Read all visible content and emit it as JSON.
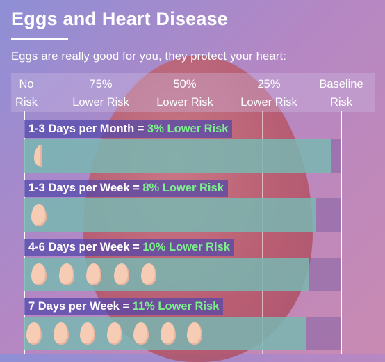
{
  "title": "Eggs and Heart Disease",
  "subtitle": "Eggs are really good for you, they protect your heart:",
  "chart_data": {
    "type": "bar",
    "orientation": "horizontal",
    "title": "Eggs and Heart Disease",
    "axis_labels": [
      {
        "line1": "No",
        "line2": "Risk",
        "risk_remaining_pct": 0
      },
      {
        "line1": "75%",
        "line2": "Lower Risk",
        "risk_remaining_pct": 25
      },
      {
        "line1": "50%",
        "line2": "Lower Risk",
        "risk_remaining_pct": 50
      },
      {
        "line1": "25%",
        "line2": "Lower Risk",
        "risk_remaining_pct": 75
      },
      {
        "line1": "Baseline",
        "line2": "Risk",
        "risk_remaining_pct": 100
      }
    ],
    "xlim": [
      0,
      100
    ],
    "rows": [
      {
        "label": "1-3 Days per Month = ",
        "risk_text": "3% Lower Risk",
        "lower_risk_pct": 3,
        "eggs": 0.5
      },
      {
        "label": "1-3 Days per Week = ",
        "risk_text": "8% Lower Risk",
        "lower_risk_pct": 8,
        "eggs": 1
      },
      {
        "label": "4-6 Days per Week = ",
        "risk_text": "10% Lower Risk",
        "lower_risk_pct": 10,
        "eggs": 5
      },
      {
        "label": "7 Days per Week = ",
        "risk_text": "11% Lower Risk",
        "lower_risk_pct": 11,
        "eggs": 7
      }
    ],
    "colors": {
      "fill": "#78c8b4",
      "track": "#785aa0",
      "label_bg": "#5046aa",
      "risk_text": "#7cf08a"
    }
  }
}
